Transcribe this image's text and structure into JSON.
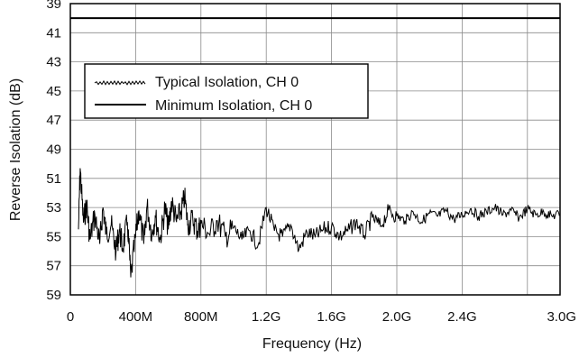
{
  "chart_data": {
    "type": "line",
    "title": "",
    "xlabel": "Frequency (Hz)",
    "ylabel": "Reverse Isolation (dB)",
    "xlim": [
      0,
      3.0
    ],
    "ylim": [
      39,
      59
    ],
    "y_inverted": true,
    "grid": true,
    "legend_position": "top-left",
    "x_ticks": [
      {
        "value": 0,
        "label": "0"
      },
      {
        "value": 0.4,
        "label": "400M"
      },
      {
        "value": 0.8,
        "label": "800M"
      },
      {
        "value": 1.2,
        "label": "1.2G"
      },
      {
        "value": 1.6,
        "label": "1.6G"
      },
      {
        "value": 2.0,
        "label": "2.0G"
      },
      {
        "value": 2.4,
        "label": "2.4G"
      },
      {
        "value": 3.0,
        "label": "3.0G"
      }
    ],
    "y_ticks": [
      39,
      41,
      43,
      45,
      47,
      49,
      51,
      53,
      55,
      57,
      59
    ],
    "series": [
      {
        "name": "Typical Isolation, CH 0",
        "x": [
          0.05,
          0.06,
          0.08,
          0.1,
          0.12,
          0.15,
          0.18,
          0.2,
          0.22,
          0.25,
          0.28,
          0.3,
          0.32,
          0.35,
          0.37,
          0.4,
          0.42,
          0.45,
          0.47,
          0.5,
          0.52,
          0.55,
          0.58,
          0.6,
          0.62,
          0.65,
          0.68,
          0.7,
          0.72,
          0.75,
          0.78,
          0.8,
          0.85,
          0.9,
          0.95,
          1.0,
          1.05,
          1.1,
          1.15,
          1.2,
          1.25,
          1.3,
          1.35,
          1.4,
          1.45,
          1.5,
          1.55,
          1.6,
          1.65,
          1.7,
          1.75,
          1.8,
          1.85,
          1.9,
          1.95,
          2.0,
          2.05,
          2.1,
          2.15,
          2.2,
          2.25,
          2.3,
          2.35,
          2.4,
          2.45,
          2.5,
          2.55,
          2.6,
          2.65,
          2.7,
          2.75,
          2.8,
          2.85,
          2.9,
          2.95,
          3.0
        ],
        "y": [
          54.5,
          50.3,
          54.0,
          52.8,
          55.2,
          53.5,
          55.5,
          53.0,
          54.8,
          54.2,
          56.0,
          54.5,
          55.8,
          54.0,
          57.8,
          55.0,
          53.2,
          55.5,
          52.9,
          54.8,
          53.6,
          55.2,
          53.0,
          54.5,
          52.6,
          54.0,
          53.2,
          52.3,
          54.2,
          53.8,
          54.6,
          54.1,
          54.8,
          53.9,
          55.0,
          54.4,
          55.2,
          54.6,
          55.6,
          53.0,
          54.6,
          55.0,
          54.2,
          55.9,
          54.7,
          55.0,
          54.5,
          54.3,
          55.0,
          54.6,
          54.0,
          54.9,
          53.7,
          54.3,
          53.2,
          53.6,
          53.9,
          53.3,
          54.0,
          53.4,
          53.6,
          53.2,
          53.8,
          53.5,
          53.1,
          53.6,
          53.3,
          53.0,
          53.5,
          53.2,
          53.7,
          53.1,
          53.5,
          53.3,
          53.6,
          53.4
        ]
      },
      {
        "name": "Minimum Isolation, CH 0",
        "x": [
          0,
          3.0
        ],
        "y": [
          40,
          40
        ]
      }
    ]
  }
}
